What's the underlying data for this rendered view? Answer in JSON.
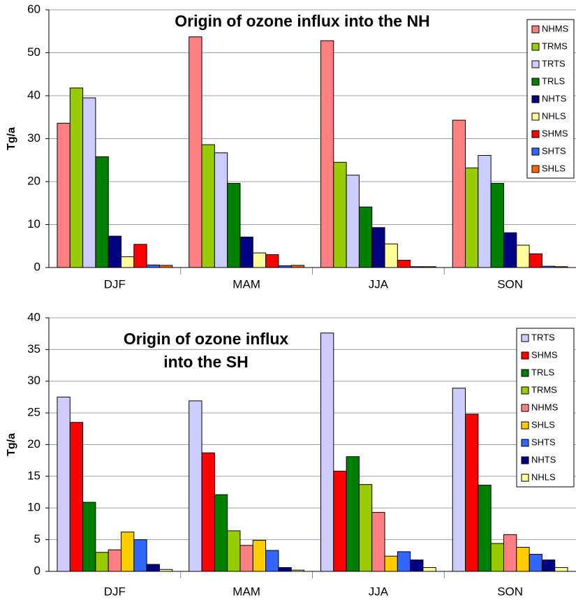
{
  "chart_data": [
    {
      "type": "bar",
      "title": [
        "Origin of ozone influx into the NH"
      ],
      "y_label": "Tg/a",
      "categories": [
        "DJF",
        "MAM",
        "JJA",
        "SON"
      ],
      "ylim": [
        0,
        60
      ],
      "yticks": [
        0,
        10,
        20,
        30,
        40,
        50,
        60
      ],
      "grid": true,
      "legend": "upper right",
      "series": [
        {
          "name": "NHMS",
          "color": "#ff8080",
          "values": [
            33.6,
            53.7,
            52.8,
            34.3
          ]
        },
        {
          "name": "TRMS",
          "color": "#99cc00",
          "values": [
            41.8,
            28.6,
            24.5,
            23.2
          ]
        },
        {
          "name": "TRTS",
          "color": "#ccccff",
          "values": [
            39.5,
            26.7,
            21.5,
            26.1
          ]
        },
        {
          "name": "TRLS",
          "color": "#008000",
          "values": [
            25.8,
            19.6,
            14.1,
            19.6
          ]
        },
        {
          "name": "NHTS",
          "color": "#000080",
          "values": [
            7.3,
            7.1,
            9.3,
            8.1
          ]
        },
        {
          "name": "NHLS",
          "color": "#ffff99",
          "values": [
            2.5,
            3.4,
            5.5,
            5.2
          ]
        },
        {
          "name": "SHMS",
          "color": "#ff0000",
          "values": [
            5.4,
            3.0,
            1.7,
            3.2
          ]
        },
        {
          "name": "SHTS",
          "color": "#3366ff",
          "values": [
            0.6,
            0.4,
            0.2,
            0.3
          ]
        },
        {
          "name": "SHLS",
          "color": "#ff6600",
          "values": [
            0.5,
            0.5,
            0.2,
            0.2
          ]
        }
      ]
    },
    {
      "type": "bar",
      "title": [
        "Origin of ozone influx",
        "into the SH"
      ],
      "y_label": "Tg/a",
      "categories": [
        "DJF",
        "MAM",
        "JJA",
        "SON"
      ],
      "ylim": [
        0,
        40
      ],
      "yticks": [
        0,
        5,
        10,
        15,
        20,
        25,
        30,
        35,
        40
      ],
      "grid": true,
      "legend": "upper right",
      "series": [
        {
          "name": "TRTS",
          "color": "#ccccff",
          "values": [
            27.5,
            26.9,
            37.6,
            28.9
          ]
        },
        {
          "name": "SHMS",
          "color": "#ff0000",
          "values": [
            23.5,
            18.7,
            15.8,
            24.8
          ]
        },
        {
          "name": "TRLS",
          "color": "#008000",
          "values": [
            10.9,
            12.1,
            18.1,
            13.6
          ]
        },
        {
          "name": "TRMS",
          "color": "#99cc00",
          "values": [
            3.0,
            6.4,
            13.7,
            4.4
          ]
        },
        {
          "name": "NHMS",
          "color": "#ff8080",
          "values": [
            3.4,
            4.1,
            9.3,
            5.8
          ]
        },
        {
          "name": "SHLS",
          "color": "#ffcc00",
          "values": [
            6.2,
            4.9,
            2.4,
            3.8
          ]
        },
        {
          "name": "SHTS",
          "color": "#3366ff",
          "values": [
            5.0,
            3.3,
            3.1,
            2.7
          ]
        },
        {
          "name": "NHTS",
          "color": "#000080",
          "values": [
            1.1,
            0.6,
            1.8,
            1.8
          ]
        },
        {
          "name": "NHLS",
          "color": "#ffff99",
          "values": [
            0.3,
            0.2,
            0.6,
            0.6
          ]
        }
      ]
    }
  ]
}
